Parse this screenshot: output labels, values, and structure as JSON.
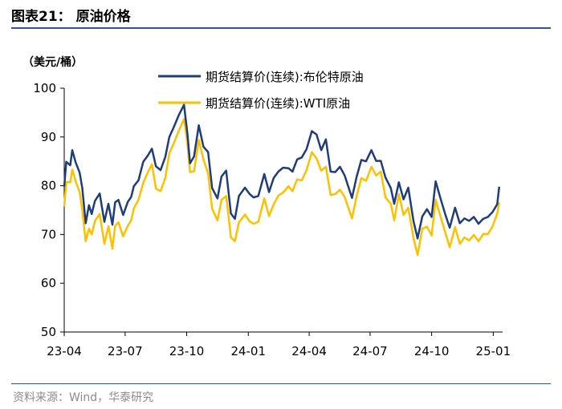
{
  "header": {
    "title": "图表21：  原油价格"
  },
  "footer": {
    "source": "资料来源：Wind，华泰研究"
  },
  "chart_data": {
    "type": "line",
    "unit_label": "（美元/桶）",
    "ylim": [
      50,
      100
    ],
    "yticks": [
      "50",
      "60",
      "70",
      "80",
      "90",
      "100"
    ],
    "xticks": [
      "23-04",
      "23-07",
      "23-10",
      "24-01",
      "24-04",
      "24-07",
      "24-10",
      "25-01"
    ],
    "xlim": [
      "2023-04-01",
      "2025-01-15"
    ],
    "legend_position": "top-right",
    "series": [
      {
        "name": "期货结算价(连续):布伦特原油",
        "color": "#1f3d7a",
        "points": [
          [
            "2023-04-01",
            79.8
          ],
          [
            "2023-04-04",
            84.9
          ],
          [
            "2023-04-10",
            84.2
          ],
          [
            "2023-04-13",
            87.3
          ],
          [
            "2023-04-18",
            84.8
          ],
          [
            "2023-04-24",
            82.7
          ],
          [
            "2023-04-28",
            79.5
          ],
          [
            "2023-05-03",
            72.3
          ],
          [
            "2023-05-08",
            76.0
          ],
          [
            "2023-05-12",
            74.2
          ],
          [
            "2023-05-17",
            76.9
          ],
          [
            "2023-05-24",
            78.4
          ],
          [
            "2023-05-31",
            72.6
          ],
          [
            "2023-06-06",
            76.3
          ],
          [
            "2023-06-12",
            72.0
          ],
          [
            "2023-06-16",
            76.6
          ],
          [
            "2023-06-21",
            77.1
          ],
          [
            "2023-06-28",
            74.0
          ],
          [
            "2023-07-05",
            76.7
          ],
          [
            "2023-07-10",
            77.7
          ],
          [
            "2023-07-14",
            79.9
          ],
          [
            "2023-07-21",
            81.1
          ],
          [
            "2023-07-28",
            84.9
          ],
          [
            "2023-08-04",
            86.2
          ],
          [
            "2023-08-10",
            87.6
          ],
          [
            "2023-08-16",
            84.0
          ],
          [
            "2023-08-23",
            83.2
          ],
          [
            "2023-08-30",
            85.9
          ],
          [
            "2023-09-05",
            90.0
          ],
          [
            "2023-09-12",
            92.1
          ],
          [
            "2023-09-19",
            94.4
          ],
          [
            "2023-09-27",
            96.6
          ],
          [
            "2023-10-02",
            90.7
          ],
          [
            "2023-10-06",
            84.6
          ],
          [
            "2023-10-12",
            86.0
          ],
          [
            "2023-10-19",
            92.4
          ],
          [
            "2023-10-26",
            88.0
          ],
          [
            "2023-11-02",
            86.9
          ],
          [
            "2023-11-08",
            79.5
          ],
          [
            "2023-11-16",
            77.4
          ],
          [
            "2023-11-22",
            81.9
          ],
          [
            "2023-11-29",
            83.1
          ],
          [
            "2023-12-06",
            74.3
          ],
          [
            "2023-12-12",
            73.2
          ],
          [
            "2023-12-18",
            77.9
          ],
          [
            "2023-12-27",
            79.6
          ],
          [
            "2024-01-03",
            78.3
          ],
          [
            "2024-01-09",
            77.6
          ],
          [
            "2024-01-16",
            77.9
          ],
          [
            "2024-01-25",
            82.4
          ],
          [
            "2024-02-01",
            78.7
          ],
          [
            "2024-02-08",
            81.6
          ],
          [
            "2024-02-15",
            82.9
          ],
          [
            "2024-02-22",
            83.7
          ],
          [
            "2024-03-01",
            83.6
          ],
          [
            "2024-03-07",
            82.9
          ],
          [
            "2024-03-14",
            85.4
          ],
          [
            "2024-03-21",
            85.8
          ],
          [
            "2024-03-28",
            87.5
          ],
          [
            "2024-04-05",
            91.2
          ],
          [
            "2024-04-12",
            90.5
          ],
          [
            "2024-04-19",
            87.3
          ],
          [
            "2024-04-26",
            89.5
          ],
          [
            "2024-05-03",
            82.9
          ],
          [
            "2024-05-10",
            82.8
          ],
          [
            "2024-05-17",
            83.9
          ],
          [
            "2024-05-24",
            82.1
          ],
          [
            "2024-06-04",
            77.5
          ],
          [
            "2024-06-11",
            81.9
          ],
          [
            "2024-06-18",
            85.3
          ],
          [
            "2024-06-25",
            85.0
          ],
          [
            "2024-07-03",
            87.3
          ],
          [
            "2024-07-10",
            85.1
          ],
          [
            "2024-07-17",
            85.1
          ],
          [
            "2024-07-24",
            81.7
          ],
          [
            "2024-08-01",
            79.5
          ],
          [
            "2024-08-06",
            76.3
          ],
          [
            "2024-08-13",
            80.7
          ],
          [
            "2024-08-20",
            77.2
          ],
          [
            "2024-08-27",
            79.6
          ],
          [
            "2024-09-04",
            72.7
          ],
          [
            "2024-09-10",
            69.2
          ],
          [
            "2024-09-17",
            73.7
          ],
          [
            "2024-09-24",
            75.2
          ],
          [
            "2024-10-01",
            73.6
          ],
          [
            "2024-10-07",
            80.9
          ],
          [
            "2024-10-14",
            77.5
          ],
          [
            "2024-10-21",
            74.3
          ],
          [
            "2024-10-28",
            71.4
          ],
          [
            "2024-11-05",
            75.5
          ],
          [
            "2024-11-12",
            72.3
          ],
          [
            "2024-11-19",
            73.3
          ],
          [
            "2024-11-26",
            72.8
          ],
          [
            "2024-12-03",
            73.6
          ],
          [
            "2024-12-10",
            72.2
          ],
          [
            "2024-12-17",
            73.2
          ],
          [
            "2024-12-24",
            73.6
          ],
          [
            "2024-12-31",
            74.6
          ],
          [
            "2025-01-07",
            76.2
          ],
          [
            "2025-01-10",
            79.8
          ]
        ]
      },
      {
        "name": "期货结算价(连续):WTI原油",
        "color": "#ffc000",
        "points": [
          [
            "2023-04-01",
            75.7
          ],
          [
            "2023-04-04",
            80.7
          ],
          [
            "2023-04-10",
            80.7
          ],
          [
            "2023-04-13",
            83.3
          ],
          [
            "2023-04-18",
            80.9
          ],
          [
            "2023-04-24",
            78.7
          ],
          [
            "2023-04-28",
            74.9
          ],
          [
            "2023-05-03",
            68.6
          ],
          [
            "2023-05-08",
            71.2
          ],
          [
            "2023-05-12",
            70.0
          ],
          [
            "2023-05-17",
            72.8
          ],
          [
            "2023-05-24",
            74.2
          ],
          [
            "2023-05-31",
            68.1
          ],
          [
            "2023-06-06",
            71.7
          ],
          [
            "2023-06-12",
            67.1
          ],
          [
            "2023-06-16",
            71.8
          ],
          [
            "2023-06-21",
            72.5
          ],
          [
            "2023-06-28",
            69.6
          ],
          [
            "2023-07-05",
            71.8
          ],
          [
            "2023-07-10",
            72.9
          ],
          [
            "2023-07-14",
            75.4
          ],
          [
            "2023-07-21",
            77.1
          ],
          [
            "2023-07-28",
            80.6
          ],
          [
            "2023-08-04",
            82.8
          ],
          [
            "2023-08-10",
            84.4
          ],
          [
            "2023-08-16",
            79.4
          ],
          [
            "2023-08-23",
            78.9
          ],
          [
            "2023-08-30",
            81.6
          ],
          [
            "2023-09-05",
            86.7
          ],
          [
            "2023-09-12",
            88.8
          ],
          [
            "2023-09-19",
            91.2
          ],
          [
            "2023-09-27",
            93.7
          ],
          [
            "2023-10-02",
            88.8
          ],
          [
            "2023-10-06",
            82.8
          ],
          [
            "2023-10-12",
            83.0
          ],
          [
            "2023-10-19",
            89.4
          ],
          [
            "2023-10-26",
            85.4
          ],
          [
            "2023-11-02",
            82.5
          ],
          [
            "2023-11-08",
            75.3
          ],
          [
            "2023-11-16",
            72.9
          ],
          [
            "2023-11-22",
            77.1
          ],
          [
            "2023-11-29",
            77.9
          ],
          [
            "2023-12-06",
            69.4
          ],
          [
            "2023-12-12",
            68.6
          ],
          [
            "2023-12-18",
            72.5
          ],
          [
            "2023-12-27",
            74.1
          ],
          [
            "2024-01-03",
            72.7
          ],
          [
            "2024-01-09",
            72.2
          ],
          [
            "2024-01-16",
            72.6
          ],
          [
            "2024-01-25",
            77.4
          ],
          [
            "2024-02-01",
            73.8
          ],
          [
            "2024-02-08",
            76.2
          ],
          [
            "2024-02-15",
            78.0
          ],
          [
            "2024-02-22",
            78.6
          ],
          [
            "2024-03-01",
            79.9
          ],
          [
            "2024-03-07",
            78.9
          ],
          [
            "2024-03-14",
            81.3
          ],
          [
            "2024-03-21",
            81.1
          ],
          [
            "2024-03-28",
            83.2
          ],
          [
            "2024-04-05",
            86.9
          ],
          [
            "2024-04-12",
            85.6
          ],
          [
            "2024-04-19",
            83.1
          ],
          [
            "2024-04-26",
            83.9
          ],
          [
            "2024-05-03",
            78.1
          ],
          [
            "2024-05-10",
            78.3
          ],
          [
            "2024-05-17",
            79.2
          ],
          [
            "2024-05-24",
            77.7
          ],
          [
            "2024-06-04",
            73.3
          ],
          [
            "2024-06-11",
            78.0
          ],
          [
            "2024-06-18",
            81.6
          ],
          [
            "2024-06-25",
            81.0
          ],
          [
            "2024-07-03",
            83.9
          ],
          [
            "2024-07-10",
            82.1
          ],
          [
            "2024-07-17",
            82.9
          ],
          [
            "2024-07-24",
            77.6
          ],
          [
            "2024-08-01",
            76.3
          ],
          [
            "2024-08-06",
            72.9
          ],
          [
            "2024-08-13",
            78.3
          ],
          [
            "2024-08-20",
            74.0
          ],
          [
            "2024-08-27",
            75.5
          ],
          [
            "2024-09-04",
            69.2
          ],
          [
            "2024-09-10",
            65.8
          ],
          [
            "2024-09-17",
            71.2
          ],
          [
            "2024-09-24",
            71.6
          ],
          [
            "2024-10-01",
            69.8
          ],
          [
            "2024-10-07",
            77.1
          ],
          [
            "2024-10-14",
            73.8
          ],
          [
            "2024-10-21",
            70.6
          ],
          [
            "2024-10-28",
            67.4
          ],
          [
            "2024-11-05",
            71.5
          ],
          [
            "2024-11-12",
            68.1
          ],
          [
            "2024-11-19",
            69.4
          ],
          [
            "2024-11-26",
            68.8
          ],
          [
            "2024-12-03",
            69.9
          ],
          [
            "2024-12-10",
            68.6
          ],
          [
            "2024-12-17",
            70.1
          ],
          [
            "2024-12-24",
            70.1
          ],
          [
            "2024-12-31",
            71.7
          ],
          [
            "2025-01-07",
            74.3
          ],
          [
            "2025-01-10",
            76.6
          ]
        ]
      }
    ]
  }
}
